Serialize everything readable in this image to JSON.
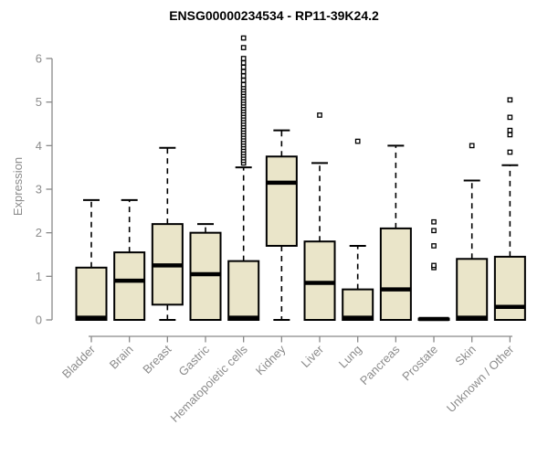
{
  "chart_data": {
    "type": "boxplot",
    "title": "ENSG00000234534 - RP11-39K24.2",
    "xlabel": "",
    "ylabel": "Expression",
    "ylim": [
      0,
      6.6
    ],
    "yticks": [
      0,
      1,
      2,
      3,
      4,
      5,
      6
    ],
    "grid": false,
    "legend": "none",
    "categories": [
      "Bladder",
      "Brain",
      "Breast",
      "Gastric",
      "Hematopoietic cells",
      "Kidney",
      "Liver",
      "Lung",
      "Pancreas",
      "Prostate",
      "Skin",
      "Unknown / Other"
    ],
    "boxes": [
      {
        "category": "Bladder",
        "low": 0,
        "q1": 0,
        "median": 0.05,
        "q3": 1.2,
        "high": 2.75,
        "outliers": []
      },
      {
        "category": "Brain",
        "low": 0,
        "q1": 0,
        "median": 0.9,
        "q3": 1.55,
        "high": 2.75,
        "outliers": []
      },
      {
        "category": "Breast",
        "low": 0,
        "q1": 0.35,
        "median": 1.25,
        "q3": 2.2,
        "high": 3.95,
        "outliers": []
      },
      {
        "category": "Gastric",
        "low": 0,
        "q1": 0,
        "median": 1.05,
        "q3": 2.0,
        "high": 2.2,
        "outliers": []
      },
      {
        "category": "Hematopoietic cells",
        "low": 0,
        "q1": 0,
        "median": 0.05,
        "q3": 1.35,
        "high": 3.5,
        "outliers": [
          3.6,
          3.66,
          3.72,
          3.78,
          3.84,
          3.9,
          3.96,
          4.02,
          4.08,
          4.14,
          4.2,
          4.26,
          4.32,
          4.38,
          4.44,
          4.5,
          4.56,
          4.62,
          4.68,
          4.74,
          4.8,
          4.86,
          4.92,
          4.98,
          5.04,
          5.1,
          5.16,
          5.22,
          5.28,
          5.34,
          5.4,
          5.5,
          5.6,
          5.7,
          5.8,
          5.9,
          6.0,
          6.25,
          6.47
        ]
      },
      {
        "category": "Kidney",
        "low": 0,
        "q1": 1.7,
        "median": 3.15,
        "q3": 3.75,
        "high": 4.35,
        "outliers": []
      },
      {
        "category": "Liver",
        "low": 0,
        "q1": 0,
        "median": 0.85,
        "q3": 1.8,
        "high": 3.6,
        "outliers": [
          4.7
        ]
      },
      {
        "category": "Lung",
        "low": 0,
        "q1": 0,
        "median": 0.05,
        "q3": 0.7,
        "high": 1.7,
        "outliers": [
          4.1
        ]
      },
      {
        "category": "Pancreas",
        "low": 0,
        "q1": 0,
        "median": 0.7,
        "q3": 2.1,
        "high": 4.0,
        "outliers": []
      },
      {
        "category": "Prostate",
        "low": 0,
        "q1": 0,
        "median": 0.02,
        "q3": 0.03,
        "high": 0.03,
        "outliers": [
          1.2,
          1.25,
          1.7,
          2.05,
          2.25
        ]
      },
      {
        "category": "Skin",
        "low": 0,
        "q1": 0,
        "median": 0.05,
        "q3": 1.4,
        "high": 3.2,
        "outliers": [
          4.0
        ]
      },
      {
        "category": "Unknown / Other",
        "low": 0,
        "q1": 0,
        "median": 0.3,
        "q3": 1.45,
        "high": 3.55,
        "outliers": [
          3.85,
          4.25,
          4.35,
          4.65,
          5.05
        ]
      }
    ],
    "colors": {
      "box_fill": "#EAE5C9",
      "box_stroke": "#000000",
      "median": "#000000",
      "whisker": "#000000",
      "outlier": "#000000",
      "axis": "#898989",
      "tick_label": "#8C8C8C",
      "title": "#000000",
      "background": "#FFFFFF"
    }
  }
}
